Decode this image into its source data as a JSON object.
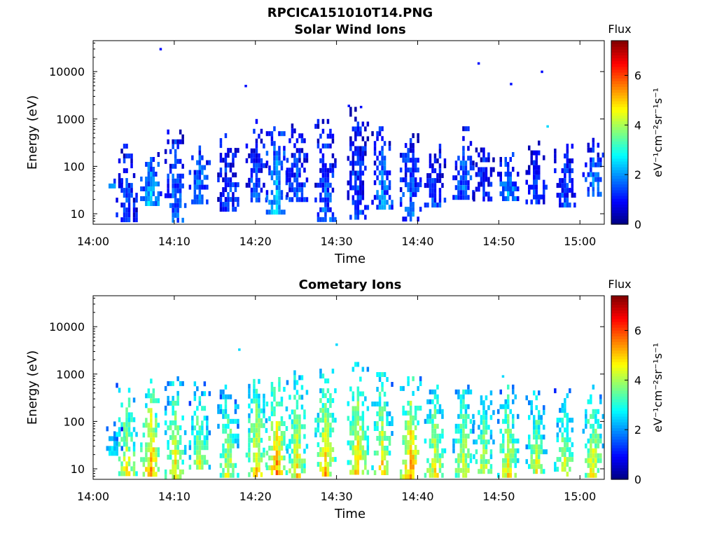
{
  "page_title": "RPCICA151010T14.PNG",
  "colors": {
    "colormap": "jet"
  },
  "chart_data": [
    {
      "type": "heatmap",
      "title": "Solar Wind Ions",
      "xlabel": "Time",
      "ylabel": "Energy (eV)",
      "xlim": [
        "14:00",
        "15:03"
      ],
      "ylim": [
        6,
        45000
      ],
      "yscale": "log",
      "x_ticks": [
        "14:00",
        "14:10",
        "14:20",
        "14:30",
        "14:40",
        "14:50",
        "15:00"
      ],
      "y_ticks": [
        {
          "value": 10,
          "label": "10"
        },
        {
          "value": 100,
          "label": "100"
        },
        {
          "value": 1000,
          "label": "1000"
        },
        {
          "value": 10000,
          "label": "10000"
        }
      ],
      "colorbar": {
        "title": "Flux",
        "label": "eV⁻¹cm⁻²sr⁻¹s⁻¹",
        "range": [
          0,
          7.4
        ],
        "ticks": [
          {
            "value": 0,
            "label": "0"
          },
          {
            "value": 2,
            "label": "2"
          },
          {
            "value": 4,
            "label": "4"
          },
          {
            "value": 6,
            "label": "6"
          }
        ]
      },
      "bursts": [
        {
          "time": "14:02.5",
          "emin": 35,
          "emax": 70,
          "flux": 2.0
        },
        {
          "time": "14:04",
          "emin": 7,
          "emax": 300,
          "flux": 1.5
        },
        {
          "time": "14:07",
          "emin": 15,
          "emax": 200,
          "flux": 2.5
        },
        {
          "time": "14:10",
          "emin": 6,
          "emax": 600,
          "flux": 1.8
        },
        {
          "time": "14:13",
          "emin": 20,
          "emax": 350,
          "flux": 2.0
        },
        {
          "time": "14:16.5",
          "emin": 12,
          "emax": 500,
          "flux": 1.5
        },
        {
          "time": "14:20",
          "emin": 20,
          "emax": 1000,
          "flux": 1.6
        },
        {
          "time": "14:22.5",
          "emin": 12,
          "emax": 700,
          "flux": 2.5
        },
        {
          "time": "14:25",
          "emin": 18,
          "emax": 800,
          "flux": 1.6
        },
        {
          "time": "14:28.5",
          "emin": 7,
          "emax": 1000,
          "flux": 1.7
        },
        {
          "time": "14:32.5",
          "emin": 6,
          "emax": 1800,
          "flux": 1.5
        },
        {
          "time": "14:35.5",
          "emin": 15,
          "emax": 700,
          "flux": 2.0
        },
        {
          "time": "14:39",
          "emin": 6,
          "emax": 500,
          "flux": 1.8
        },
        {
          "time": "14:42",
          "emin": 15,
          "emax": 300,
          "flux": 1.5
        },
        {
          "time": "14:45.5",
          "emin": 20,
          "emax": 700,
          "flux": 1.8
        },
        {
          "time": "14:48",
          "emin": 20,
          "emax": 250,
          "flux": 1.5
        },
        {
          "time": "14:51",
          "emin": 20,
          "emax": 200,
          "flux": 2.2
        },
        {
          "time": "14:54.5",
          "emin": 20,
          "emax": 350,
          "flux": 1.5
        },
        {
          "time": "14:58",
          "emin": 15,
          "emax": 300,
          "flux": 1.5
        },
        {
          "time": "15:01.5",
          "emin": 25,
          "emax": 400,
          "flux": 2.0
        }
      ],
      "isolated_points": [
        {
          "time": "14:08.3",
          "energy": 30000,
          "flux": 1.0
        },
        {
          "time": "14:18.8",
          "energy": 5000,
          "flux": 1.0
        },
        {
          "time": "14:47.5",
          "energy": 15000,
          "flux": 1.0
        },
        {
          "time": "14:51.5",
          "energy": 5500,
          "flux": 1.0
        },
        {
          "time": "14:55.3",
          "energy": 10000,
          "flux": 1.0
        },
        {
          "time": "14:56",
          "energy": 700,
          "flux": 2.5
        },
        {
          "time": "14:31.5",
          "energy": 1900,
          "flux": 1.0
        },
        {
          "time": "14:33",
          "energy": 1800,
          "flux": 1.0
        }
      ]
    },
    {
      "type": "heatmap",
      "title": "Cometary Ions",
      "xlabel": "Time",
      "ylabel": "Energy (eV)",
      "xlim": [
        "14:00",
        "15:03"
      ],
      "ylim": [
        6,
        45000
      ],
      "yscale": "log",
      "x_ticks": [
        "14:00",
        "14:10",
        "14:20",
        "14:30",
        "14:40",
        "14:50",
        "15:00"
      ],
      "y_ticks": [
        {
          "value": 10,
          "label": "10"
        },
        {
          "value": 100,
          "label": "100"
        },
        {
          "value": 1000,
          "label": "1000"
        },
        {
          "value": 10000,
          "label": "10000"
        }
      ],
      "colorbar": {
        "title": "Flux",
        "label": "eV⁻¹cm⁻²sr⁻¹s⁻¹",
        "range": [
          0,
          7.4
        ],
        "ticks": [
          {
            "value": 0,
            "label": "0"
          },
          {
            "value": 2,
            "label": "2"
          },
          {
            "value": 4,
            "label": "4"
          },
          {
            "value": 6,
            "label": "6"
          }
        ]
      },
      "bursts": [
        {
          "time": "14:02.5",
          "emin": 20,
          "emax": 100,
          "flux": 3.0
        },
        {
          "time": "14:04",
          "emin": 6,
          "emax": 650,
          "flux": 4.8
        },
        {
          "time": "14:07",
          "emin": 6,
          "emax": 800,
          "flux": 5.6
        },
        {
          "time": "14:10",
          "emin": 6,
          "emax": 900,
          "flux": 4.8
        },
        {
          "time": "14:13",
          "emin": 10,
          "emax": 700,
          "flux": 4.5
        },
        {
          "time": "14:16.5",
          "emin": 8,
          "emax": 600,
          "flux": 4.5
        },
        {
          "time": "14:20",
          "emin": 7,
          "emax": 1000,
          "flux": 5.0
        },
        {
          "time": "14:22.5",
          "emin": 6,
          "emax": 1100,
          "flux": 5.6
        },
        {
          "time": "14:25",
          "emin": 8,
          "emax": 1200,
          "flux": 4.8
        },
        {
          "time": "14:28.5",
          "emin": 6,
          "emax": 1300,
          "flux": 5.2
        },
        {
          "time": "14:32.5",
          "emin": 6,
          "emax": 1800,
          "flux": 5.2
        },
        {
          "time": "14:35.5",
          "emin": 6,
          "emax": 1100,
          "flux": 5.0
        },
        {
          "time": "14:39",
          "emin": 6,
          "emax": 900,
          "flux": 5.6
        },
        {
          "time": "14:42",
          "emin": 8,
          "emax": 600,
          "flux": 4.8
        },
        {
          "time": "14:45.5",
          "emin": 8,
          "emax": 600,
          "flux": 4.6
        },
        {
          "time": "14:48",
          "emin": 8,
          "emax": 450,
          "flux": 4.5
        },
        {
          "time": "14:51",
          "emin": 6,
          "emax": 600,
          "flux": 4.8
        },
        {
          "time": "14:54.5",
          "emin": 8,
          "emax": 450,
          "flux": 4.5
        },
        {
          "time": "14:58",
          "emin": 8,
          "emax": 500,
          "flux": 4.5
        },
        {
          "time": "15:01.5",
          "emin": 8,
          "emax": 600,
          "flux": 4.8
        }
      ],
      "isolated_points": [
        {
          "time": "14:18",
          "energy": 3300,
          "flux": 2.5
        },
        {
          "time": "14:30",
          "energy": 4200,
          "flux": 2.5
        },
        {
          "time": "14:50.5",
          "energy": 900,
          "flux": 2.5
        }
      ]
    }
  ]
}
